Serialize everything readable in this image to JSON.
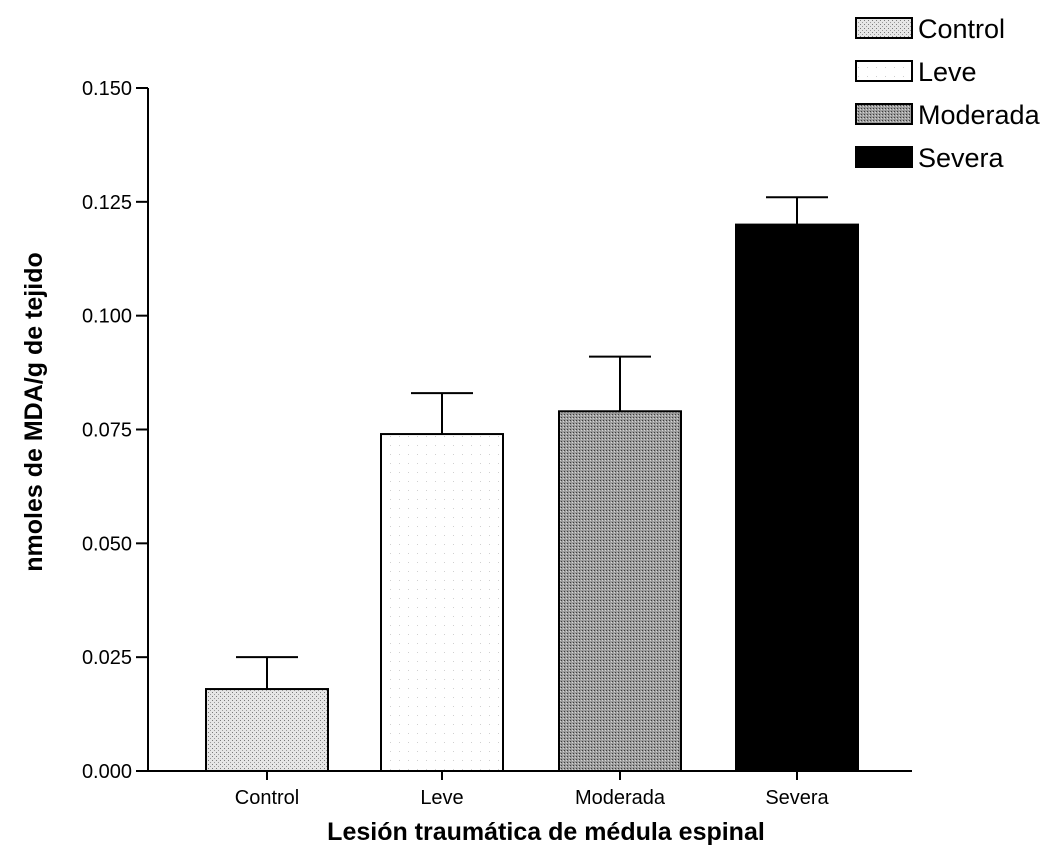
{
  "chart_data": {
    "type": "bar",
    "title": "",
    "xlabel": "Lesión traumática de médula espinal",
    "ylabel": "nmoles de MDA/g de tejido",
    "ylim": [
      0,
      0.15
    ],
    "yticks": [
      "0.000",
      "0.025",
      "0.050",
      "0.075",
      "0.100",
      "0.125",
      "0.150"
    ],
    "categories": [
      "Control",
      "Leve",
      "Moderada",
      "Severa"
    ],
    "values": [
      0.018,
      0.074,
      0.079,
      0.12
    ],
    "errors": [
      0.007,
      0.009,
      0.012,
      0.006
    ],
    "legend": [
      "Control",
      "Leve",
      "Moderada",
      "Severa"
    ],
    "legend_position": "top-right",
    "grid": false,
    "colors": [
      "#d9d9d9",
      "#ffffff",
      "#8c8c8c",
      "#000000"
    ]
  }
}
